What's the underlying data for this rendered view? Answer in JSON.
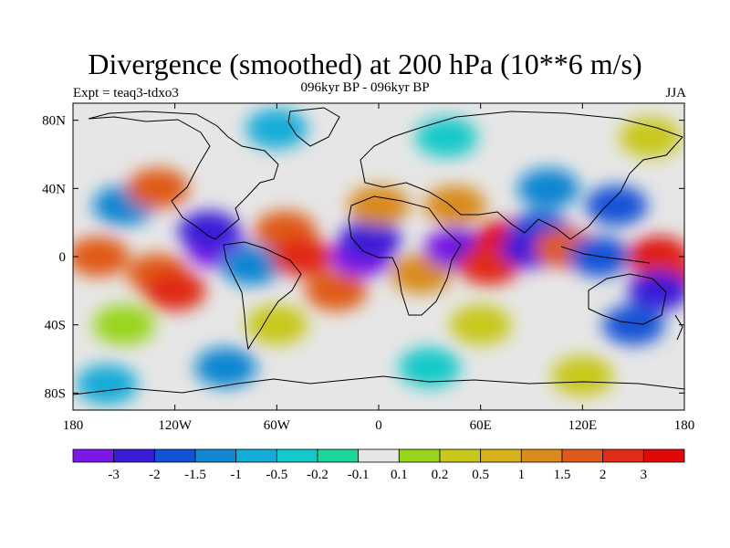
{
  "chart_data": {
    "type": "heatmap",
    "title": "Divergence (smoothed) at 200 hPa (10**6 m/s)",
    "subtitle": "096kyr BP - 096kyr BP",
    "left_label": "Expt = teaq3-tdxo3",
    "right_label": "JJA",
    "x_ticks": [
      "180",
      "120W",
      "60W",
      "0",
      "60E",
      "120E",
      "180"
    ],
    "x_values": [
      -180,
      -120,
      -60,
      0,
      60,
      120,
      180
    ],
    "y_ticks": [
      "80N",
      "40N",
      "0",
      "40S",
      "80S"
    ],
    "y_values": [
      80,
      40,
      0,
      -40,
      -80
    ],
    "xlim": [
      -180,
      180
    ],
    "ylim": [
      -90,
      90
    ],
    "colorbar": {
      "levels": [
        "-3",
        "-2",
        "-1.5",
        "-1",
        "-0.5",
        "-0.2",
        "-0.1",
        "0.1",
        "0.2",
        "0.5",
        "1",
        "1.5",
        "2",
        "3"
      ],
      "colors": [
        "#7b18e8",
        "#3a1bd8",
        "#1252d6",
        "#1186d2",
        "#12acd8",
        "#14c9c9",
        "#19d69a",
        "#e6e6e6",
        "#99d51b",
        "#c8c81a",
        "#d7b21a",
        "#d98b1b",
        "#e05a19",
        "#e02c18",
        "#e00808"
      ]
    },
    "cells": [
      {
        "lon": -165,
        "lat": 0,
        "bin": 12
      },
      {
        "lon": -130,
        "lat": -10,
        "bin": 12
      },
      {
        "lon": -120,
        "lat": -20,
        "bin": 13
      },
      {
        "lon": -95,
        "lat": 5,
        "bin": 0
      },
      {
        "lon": -100,
        "lat": 15,
        "bin": 1
      },
      {
        "lon": -75,
        "lat": -5,
        "bin": 3
      },
      {
        "lon": -55,
        "lat": 15,
        "bin": 12
      },
      {
        "lon": -45,
        "lat": 0,
        "bin": 13
      },
      {
        "lon": -25,
        "lat": -20,
        "bin": 12
      },
      {
        "lon": -10,
        "lat": 0,
        "bin": 0
      },
      {
        "lon": -5,
        "lat": 10,
        "bin": 1
      },
      {
        "lon": 25,
        "lat": -10,
        "bin": 11
      },
      {
        "lon": 45,
        "lat": 5,
        "bin": 0
      },
      {
        "lon": 60,
        "lat": 0,
        "bin": 1
      },
      {
        "lon": 75,
        "lat": 10,
        "bin": 14
      },
      {
        "lon": 65,
        "lat": -5,
        "bin": 13
      },
      {
        "lon": 95,
        "lat": 15,
        "bin": 2
      },
      {
        "lon": 90,
        "lat": 5,
        "bin": 1
      },
      {
        "lon": 110,
        "lat": 5,
        "bin": 12
      },
      {
        "lon": 130,
        "lat": 0,
        "bin": 2
      },
      {
        "lon": 165,
        "lat": 0,
        "bin": 14
      },
      {
        "lon": 170,
        "lat": -10,
        "bin": 13
      },
      {
        "lon": 165,
        "lat": -20,
        "bin": 1
      },
      {
        "lon": 150,
        "lat": -40,
        "bin": 2
      },
      {
        "lon": -150,
        "lat": 30,
        "bin": 3
      },
      {
        "lon": -130,
        "lat": 40,
        "bin": 12
      },
      {
        "lon": 0,
        "lat": 30,
        "bin": 11
      },
      {
        "lon": 45,
        "lat": 30,
        "bin": 11
      },
      {
        "lon": 100,
        "lat": 40,
        "bin": 3
      },
      {
        "lon": 140,
        "lat": 30,
        "bin": 2
      },
      {
        "lon": -150,
        "lat": -40,
        "bin": 8
      },
      {
        "lon": -60,
        "lat": -40,
        "bin": 9
      },
      {
        "lon": 60,
        "lat": -40,
        "bin": 9
      },
      {
        "lon": -90,
        "lat": -65,
        "bin": 3
      },
      {
        "lon": 30,
        "lat": -65,
        "bin": 5
      },
      {
        "lon": 120,
        "lat": -70,
        "bin": 9
      },
      {
        "lon": -160,
        "lat": -75,
        "bin": 4
      },
      {
        "lon": 160,
        "lat": 70,
        "bin": 9
      },
      {
        "lon": -60,
        "lat": 75,
        "bin": 4
      },
      {
        "lon": 40,
        "lat": 70,
        "bin": 5
      }
    ]
  }
}
